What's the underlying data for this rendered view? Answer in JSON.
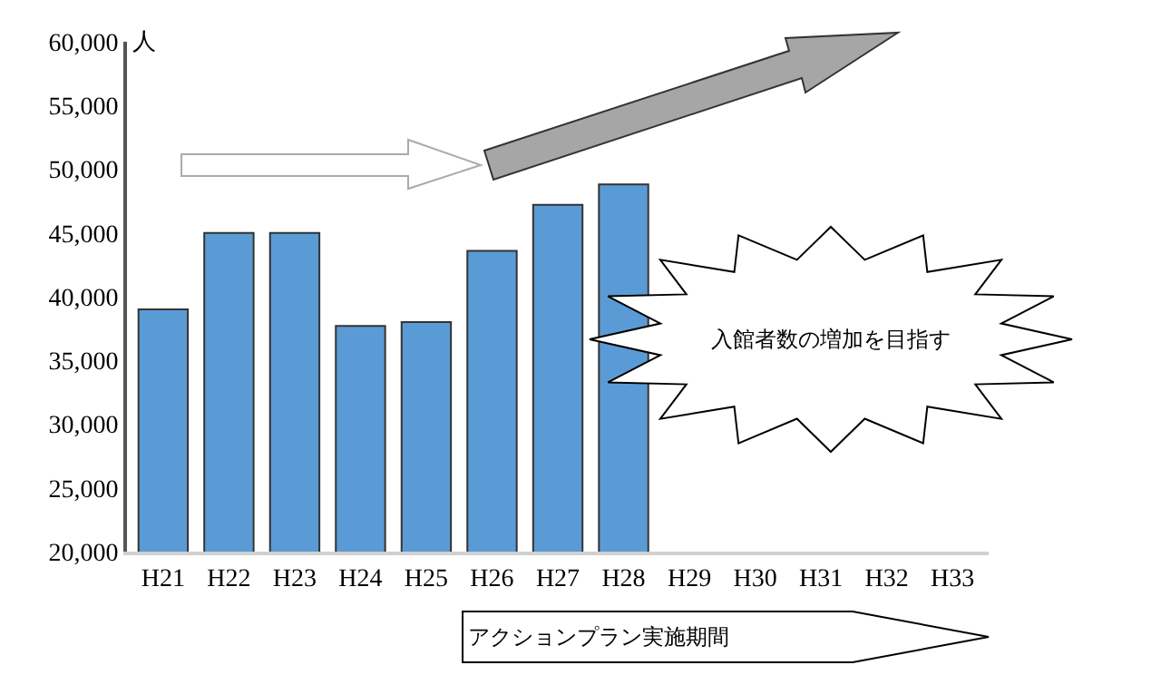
{
  "chart_data": {
    "type": "bar",
    "ylabel": "人",
    "categories": [
      "H21",
      "H22",
      "H23",
      "H24",
      "H25",
      "H26",
      "H27",
      "H28",
      "H29",
      "H30",
      "H31",
      "H32",
      "H33"
    ],
    "values": [
      39000,
      45000,
      45000,
      37700,
      38000,
      43600,
      47200,
      48800,
      null,
      null,
      null,
      null,
      null
    ],
    "color": "#5b9bd5",
    "ylim": [
      20000,
      60000
    ],
    "yticks": [
      {
        "value": 20000,
        "label": "20,000"
      },
      {
        "value": 25000,
        "label": "25,000"
      },
      {
        "value": 30000,
        "label": "30,000"
      },
      {
        "value": 35000,
        "label": "35,000"
      },
      {
        "value": 40000,
        "label": "40,000"
      },
      {
        "value": 45000,
        "label": "45,000"
      },
      {
        "value": 50000,
        "label": "50,000"
      },
      {
        "value": 55000,
        "label": "55,000"
      },
      {
        "value": 60000,
        "label": "60,000"
      }
    ],
    "annotations": [
      "入館者数の増加を目指す",
      "アクションプラン実施期間"
    ]
  }
}
